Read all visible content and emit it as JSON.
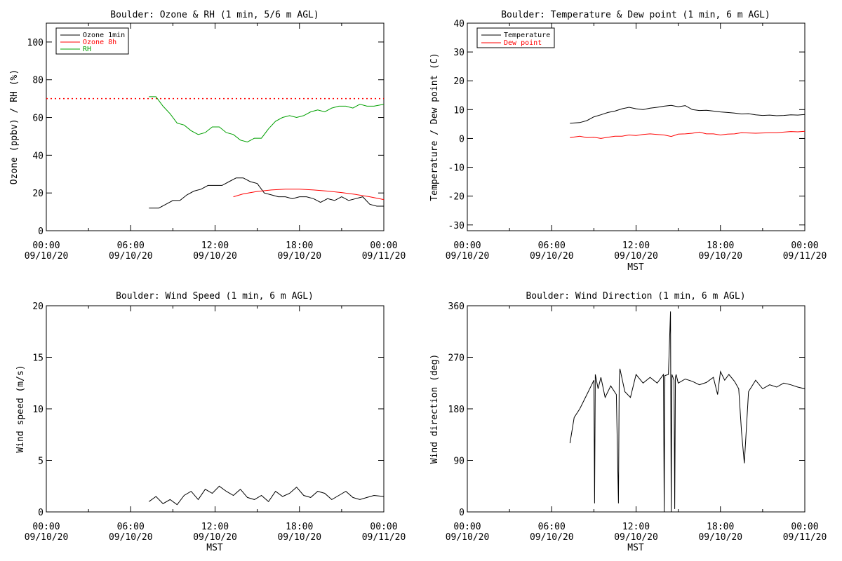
{
  "colors": {
    "black": "#000000",
    "red": "#ff0000",
    "green": "#00a000"
  },
  "x_ticks": [
    {
      "hour": 0,
      "time": "00:00",
      "date": "09/10/20"
    },
    {
      "hour": 6,
      "time": "06:00",
      "date": "09/10/20"
    },
    {
      "hour": 12,
      "time": "12:00",
      "date": "09/10/20"
    },
    {
      "hour": 18,
      "time": "18:00",
      "date": "09/10/20"
    },
    {
      "hour": 24,
      "time": "00:00",
      "date": "09/11/20"
    }
  ],
  "chart_data": [
    {
      "id": "ozone-rh",
      "type": "line",
      "title": "Boulder: Ozone & RH (1 min, 5/6 m AGL)",
      "xlabel": "",
      "ylabel": "Ozone (ppbv) / RH (%)",
      "xlim": [
        0,
        24
      ],
      "ylim": [
        0,
        110
      ],
      "yticks": [
        0,
        20,
        40,
        60,
        80,
        100
      ],
      "legend": "top-left",
      "threshold": {
        "value": 70,
        "color": "#ff0000",
        "style": "dotted"
      },
      "series": [
        {
          "name": "Ozone 1min",
          "color": "#000000",
          "x": [
            7.3,
            8.0,
            8.5,
            9.0,
            9.5,
            10.0,
            10.5,
            11.0,
            11.5,
            12.0,
            12.5,
            13.0,
            13.5,
            14.0,
            14.5,
            15.0,
            15.5,
            16.0,
            16.5,
            17.0,
            17.5,
            18.0,
            18.5,
            19.0,
            19.5,
            20.0,
            20.5,
            21.0,
            21.5,
            22.0,
            22.5,
            23.0,
            23.5,
            24.0
          ],
          "y": [
            12,
            12,
            14,
            16,
            16,
            19,
            21,
            22,
            24,
            24,
            24,
            26,
            28,
            28,
            26,
            25,
            20,
            19,
            18,
            18,
            17,
            18,
            18,
            17,
            15,
            17,
            16,
            18,
            16,
            17,
            18,
            14,
            13,
            13
          ]
        },
        {
          "name": "Ozone 8h",
          "color": "#ff0000",
          "x": [
            13.3,
            14,
            15,
            16,
            17,
            18,
            19,
            20,
            21,
            22,
            23,
            24
          ],
          "y": [
            18,
            19.5,
            20.8,
            21.6,
            22,
            22,
            21.6,
            21,
            20.2,
            19.2,
            18,
            16.5
          ]
        },
        {
          "name": "RH",
          "color": "#00a000",
          "x": [
            7.3,
            7.8,
            8.3,
            8.8,
            9.3,
            9.8,
            10.3,
            10.8,
            11.3,
            11.8,
            12.3,
            12.8,
            13.3,
            13.8,
            14.3,
            14.8,
            15.3,
            15.8,
            16.3,
            16.8,
            17.3,
            17.8,
            18.3,
            18.8,
            19.3,
            19.8,
            20.3,
            20.8,
            21.3,
            21.8,
            22.3,
            22.8,
            23.3,
            24.0
          ],
          "y": [
            71,
            71,
            66,
            62,
            57,
            56,
            53,
            51,
            52,
            55,
            55,
            52,
            51,
            48,
            47,
            49,
            49,
            54,
            58,
            60,
            61,
            60,
            61,
            63,
            64,
            63,
            65,
            66,
            66,
            65,
            67,
            66,
            66,
            67
          ]
        }
      ]
    },
    {
      "id": "temp-dew",
      "type": "line",
      "title": "Boulder: Temperature & Dew point (1 min, 6 m AGL)",
      "xlabel": "MST",
      "ylabel": "Temperature / Dew point (C)",
      "xlim": [
        0,
        24
      ],
      "ylim": [
        -32,
        40
      ],
      "yticks": [
        -30,
        -20,
        -10,
        0,
        10,
        20,
        30,
        40
      ],
      "legend": "top-left",
      "series": [
        {
          "name": "Temperature",
          "color": "#000000",
          "x": [
            7.3,
            8.0,
            8.5,
            9.0,
            9.5,
            10.0,
            10.5,
            11.0,
            11.5,
            12.0,
            12.5,
            13.0,
            13.5,
            14.0,
            14.5,
            15.0,
            15.5,
            16.0,
            16.5,
            17.0,
            17.5,
            18.0,
            18.5,
            19.0,
            19.5,
            20.0,
            20.5,
            21.0,
            21.5,
            22.0,
            22.5,
            23.0,
            23.5,
            24.0
          ],
          "y": [
            5.3,
            5.5,
            6.2,
            7.5,
            8.2,
            9.0,
            9.5,
            10.3,
            10.8,
            10.3,
            10.0,
            10.5,
            10.8,
            11.2,
            11.5,
            11.0,
            11.4,
            10.0,
            9.7,
            9.8,
            9.5,
            9.2,
            9.0,
            8.8,
            8.5,
            8.6,
            8.2,
            8.0,
            8.1,
            7.9,
            8.0,
            8.2,
            8.1,
            8.3
          ]
        },
        {
          "name": "Dew point",
          "color": "#ff0000",
          "x": [
            7.3,
            8.0,
            8.5,
            9.0,
            9.5,
            10.0,
            10.5,
            11.0,
            11.5,
            12.0,
            12.5,
            13.0,
            13.5,
            14.0,
            14.5,
            15.0,
            15.5,
            16.0,
            16.5,
            17.0,
            17.5,
            18.0,
            18.5,
            19.0,
            19.5,
            20.0,
            20.5,
            21.0,
            21.5,
            22.0,
            22.5,
            23.0,
            23.5,
            24.0
          ],
          "y": [
            0.3,
            0.8,
            0.3,
            0.4,
            0,
            0.4,
            0.8,
            0.8,
            1.2,
            1.0,
            1.4,
            1.6,
            1.4,
            1.2,
            0.7,
            1.5,
            1.6,
            1.8,
            2.2,
            1.6,
            1.6,
            1.2,
            1.5,
            1.6,
            2.0,
            1.9,
            1.8,
            1.9,
            2.0,
            2.0,
            2.2,
            2.4,
            2.3,
            2.5
          ]
        }
      ]
    },
    {
      "id": "wind-speed",
      "type": "line",
      "title": "Boulder: Wind Speed (1 min, 6 m AGL)",
      "xlabel": "MST",
      "ylabel": "Wind speed (m/s)",
      "xlim": [
        0,
        24
      ],
      "ylim": [
        0,
        20
      ],
      "yticks": [
        0,
        5,
        10,
        15,
        20
      ],
      "series": [
        {
          "color": "#000000",
          "x": [
            7.3,
            7.8,
            8.3,
            8.8,
            9.3,
            9.8,
            10.3,
            10.8,
            11.3,
            11.8,
            12.3,
            12.8,
            13.3,
            13.8,
            14.3,
            14.8,
            15.3,
            15.8,
            16.3,
            16.8,
            17.3,
            17.8,
            18.3,
            18.8,
            19.3,
            19.8,
            20.3,
            20.8,
            21.3,
            21.8,
            22.3,
            22.8,
            23.3,
            24.0
          ],
          "y": [
            1.0,
            1.5,
            0.8,
            1.2,
            0.7,
            1.6,
            2.0,
            1.2,
            2.2,
            1.8,
            2.5,
            2.0,
            1.6,
            2.2,
            1.4,
            1.2,
            1.6,
            1.0,
            2.0,
            1.5,
            1.8,
            2.4,
            1.6,
            1.4,
            2.0,
            1.8,
            1.2,
            1.6,
            2.0,
            1.4,
            1.2,
            1.4,
            1.6,
            1.5
          ]
        }
      ]
    },
    {
      "id": "wind-dir",
      "type": "line",
      "title": "Boulder: Wind Direction (1 min, 6 m AGL)",
      "xlabel": "MST",
      "ylabel": "Wind direction (deg)",
      "xlim": [
        0,
        24
      ],
      "ylim": [
        0,
        360
      ],
      "yticks": [
        0,
        90,
        180,
        270,
        360
      ],
      "series": [
        {
          "color": "#000000",
          "x": [
            7.3,
            7.6,
            8.0,
            8.5,
            8.9,
            9.0,
            9.05,
            9.1,
            9.3,
            9.5,
            9.8,
            10.2,
            10.6,
            10.75,
            10.8,
            10.85,
            11.2,
            11.6,
            12.0,
            12.5,
            13.0,
            13.5,
            13.95,
            14.0,
            14.05,
            14.3,
            14.45,
            14.5,
            14.55,
            14.7,
            14.75,
            14.8,
            14.85,
            15.0,
            15.5,
            16.0,
            16.5,
            17.0,
            17.5,
            17.8,
            18.0,
            18.3,
            18.6,
            19.0,
            19.3,
            19.5,
            19.7,
            20.0,
            20.5,
            21.0,
            21.5,
            22.0,
            22.5,
            23.0,
            23.5,
            24.0
          ],
          "y": [
            120,
            165,
            180,
            205,
            225,
            230,
            15,
            240,
            215,
            235,
            200,
            220,
            205,
            15,
            230,
            250,
            210,
            200,
            240,
            225,
            235,
            225,
            240,
            0,
            238,
            240,
            350,
            0,
            240,
            230,
            5,
            235,
            240,
            225,
            232,
            228,
            222,
            226,
            235,
            205,
            245,
            230,
            240,
            228,
            215,
            140,
            85,
            210,
            230,
            215,
            222,
            218,
            225,
            222,
            218,
            215
          ]
        }
      ]
    }
  ]
}
